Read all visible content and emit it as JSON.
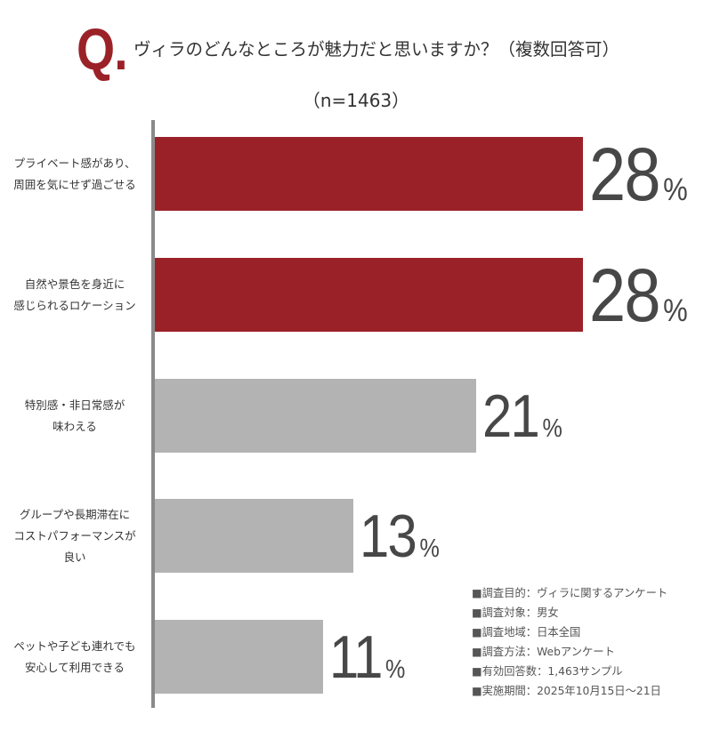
{
  "header": {
    "question_mark": "Q.",
    "title": "ヴィラのどんなところが魅力だと思いますか？（複数回答可）",
    "sample_size": "（n=1463）"
  },
  "chart_data": {
    "type": "bar",
    "orientation": "horizontal",
    "title": "ヴィラのどんなところが魅力だと思いますか？（複数回答可）",
    "subtitle": "（n=1463）",
    "categories": [
      "プライベート感があり、周囲を気にせず過ごせる",
      "自然や景色を身近に感じられるロケーション",
      "特別感・非日常感が味わえる",
      "グループや長期滞在にコストパフォーマンスが良い",
      "ペットや子ども連れでも安心して利用できる"
    ],
    "display_labels": [
      "プライベート感があり、\n周囲を気にせず過ごせる",
      "自然や景色を身近に\n感じられるロケーション",
      "特別感・非日常感が\n味わえる",
      "グループや長期滞在に\nコストパフォーマンスが\n良い",
      "ペットや子ども連れでも\n安心して利用できる"
    ],
    "values": [
      28,
      28,
      21,
      13,
      11
    ],
    "value_labels": [
      "28",
      "28",
      "21",
      "13",
      "11"
    ],
    "unit": "%",
    "highlighted": [
      true,
      true,
      false,
      false,
      false
    ],
    "bar_colors": [
      "#9b2128",
      "#9b2128",
      "#b3b3b3",
      "#b3b3b3",
      "#b3b3b3"
    ],
    "xlabel": "",
    "ylabel": "",
    "xlim": [
      0,
      30
    ],
    "grid": false,
    "legend": "none"
  },
  "notes": [
    "■調査目的：ヴィラに関するアンケート",
    "■調査対象：男女",
    "■調査地域：日本全国",
    "■調査方法：Webアンケート",
    "■有効回答数：1,463サンプル",
    "■実施期間：2025年10月15日～21日"
  ],
  "colors": {
    "accent_red": "#9b2128",
    "bar_gray": "#b3b3b3",
    "axis_gray": "#8a8a8a",
    "value_text": "#474747"
  }
}
